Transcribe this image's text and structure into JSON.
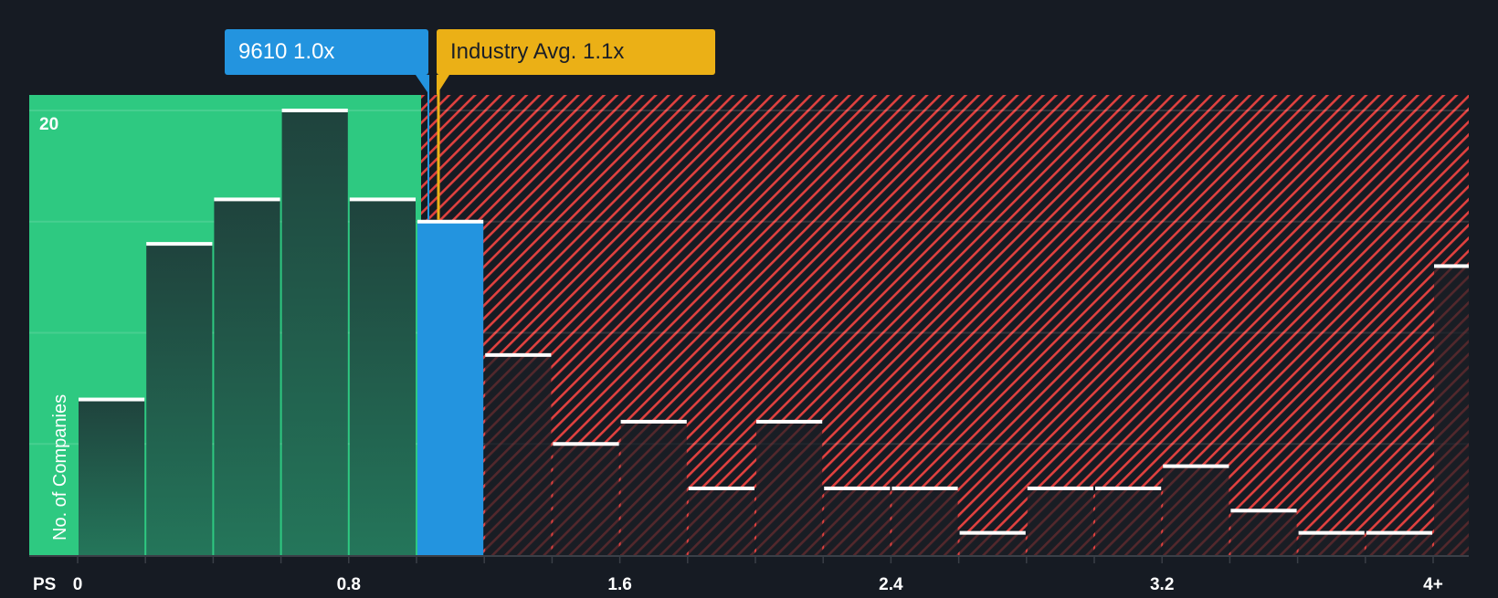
{
  "chart_data": {
    "type": "bar",
    "title": "",
    "xlabel": "PS",
    "ylabel": "No. of Companies",
    "bin_width": 0.2,
    "categories": [
      "0-0.2",
      "0.2-0.4",
      "0.4-0.6",
      "0.6-0.8",
      "0.8-1.0",
      "1.0-1.2",
      "1.2-1.4",
      "1.4-1.6",
      "1.6-1.8",
      "1.8-2.0",
      "2.0-2.2",
      "2.2-2.4",
      "2.4-2.6",
      "2.6-2.8",
      "2.8-3.0",
      "3.0-3.2",
      "3.2-3.4",
      "3.4-3.6",
      "3.6-3.8",
      "3.8-4.0",
      "4+"
    ],
    "bin_starts": [
      0,
      0.2,
      0.4,
      0.6,
      0.8,
      1.0,
      1.2,
      1.4,
      1.6,
      1.8,
      2.0,
      2.2,
      2.4,
      2.6,
      2.8,
      3.0,
      3.2,
      3.4,
      3.6,
      3.8,
      4.0
    ],
    "values": [
      7,
      14,
      16,
      20,
      16,
      15,
      9,
      5,
      6,
      3,
      6,
      3,
      3,
      1,
      3,
      3,
      4,
      2,
      1,
      1,
      13
    ],
    "highlight_bin_index": 5,
    "x_tick_labels": [
      "0",
      "0.8",
      "1.6",
      "2.4",
      "3.2",
      "4+"
    ],
    "x_tick_values": [
      0,
      0.8,
      1.6,
      2.4,
      3.2,
      4.0
    ],
    "y_tick_labels": [
      "20"
    ],
    "ylim": [
      0,
      20.7
    ],
    "gridlines_y": [
      5,
      10,
      15,
      20
    ],
    "fair_zone_max": 0.98,
    "company_value": 1.0,
    "industry_avg": 1.1,
    "colors": {
      "background": "#161b23",
      "green_zone": "#2ec981",
      "green_bar": "#214840",
      "company_bar": "#2394df",
      "red_stripe": "#e0413f",
      "industry_line": "#ebb016",
      "cap": "#ffffff"
    }
  },
  "annotations": {
    "company_label": "9610 1.0x",
    "industry_label": "Industry Avg. 1.1x"
  },
  "axis": {
    "x_title": "PS",
    "y_title": "No. of Companies",
    "y_top_label": "20"
  }
}
